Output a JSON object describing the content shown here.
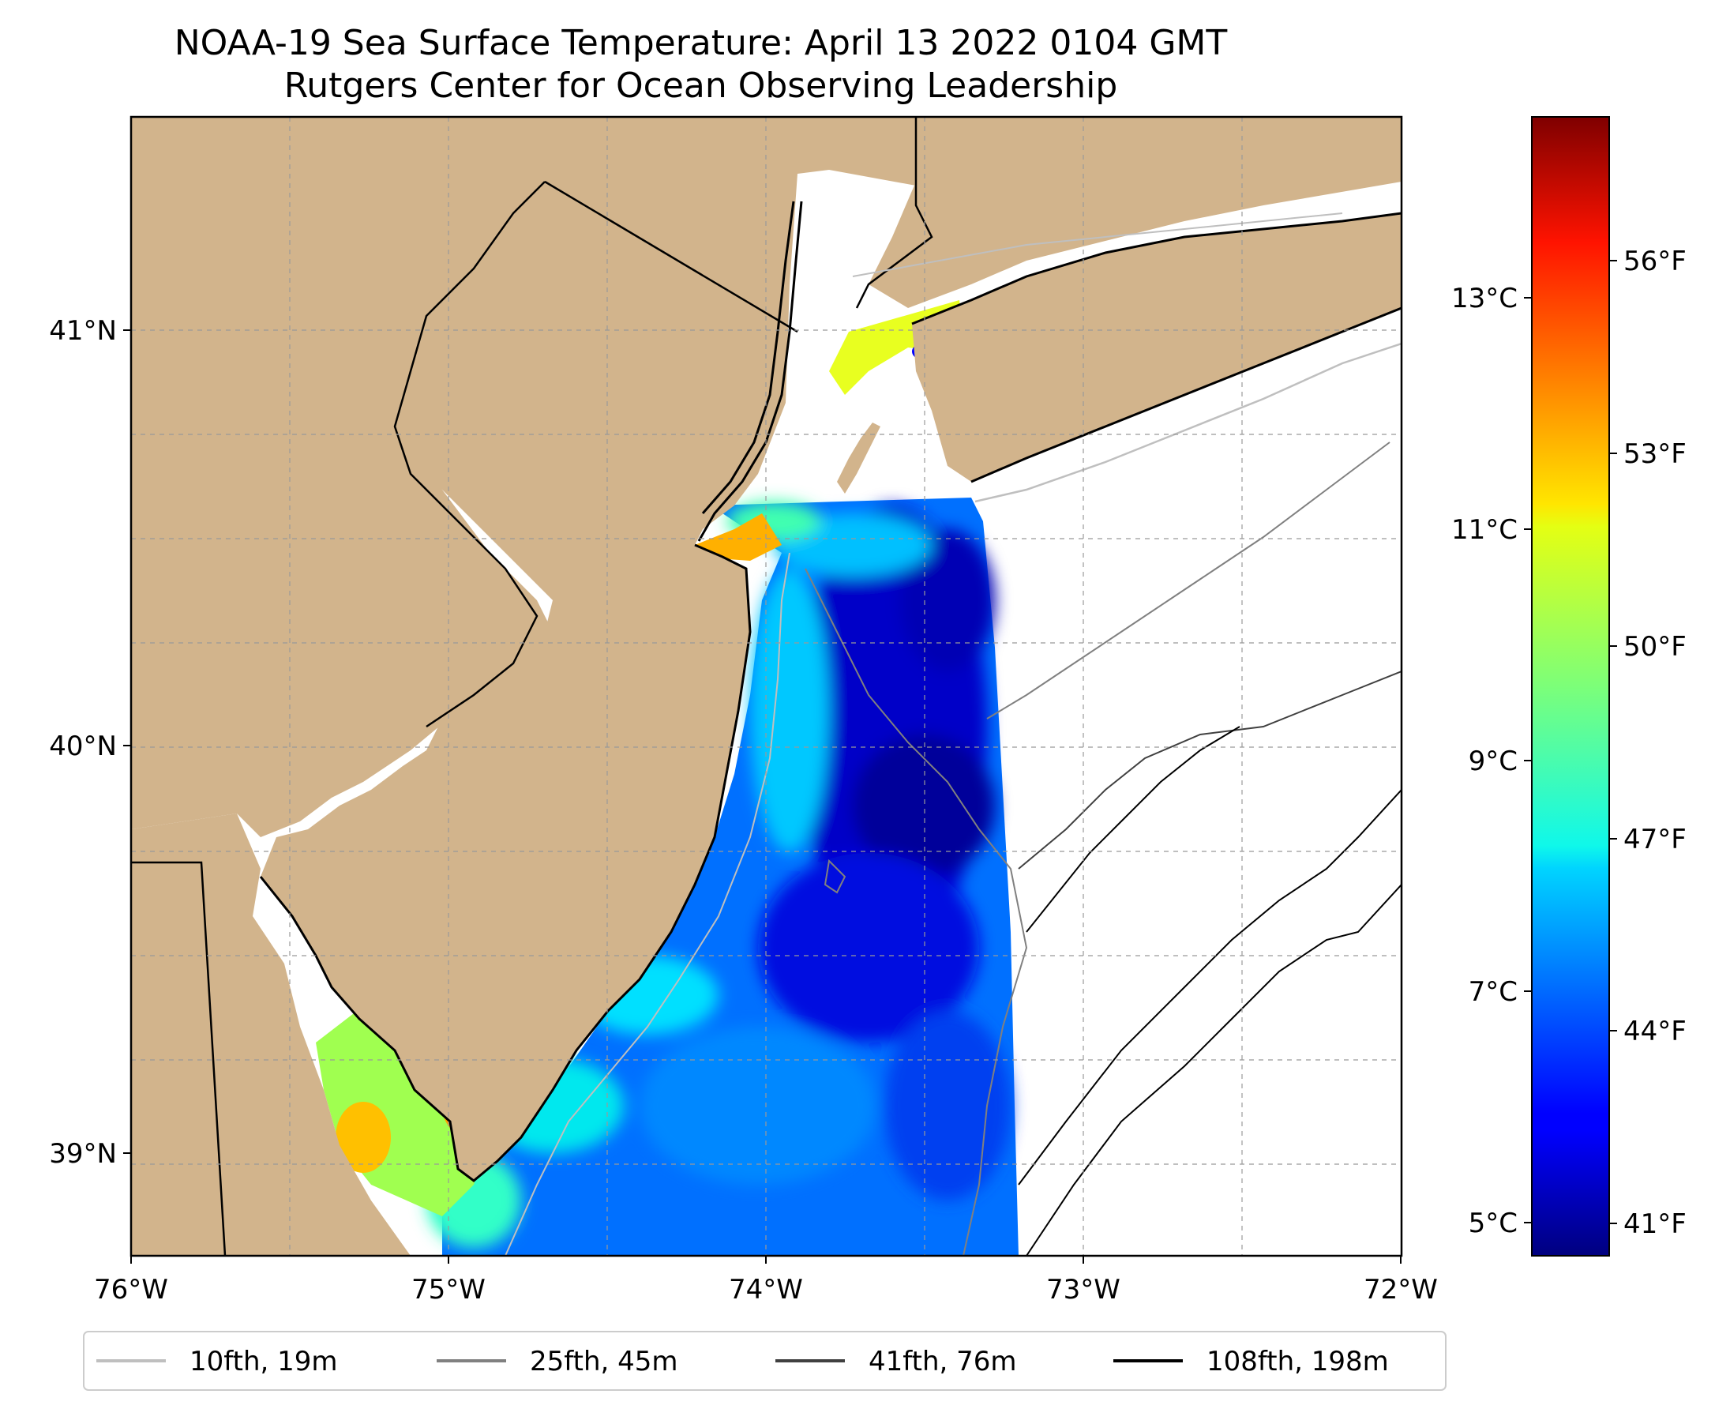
{
  "title": {
    "line1": "NOAA-19 Sea Surface Temperature: April 13 2022 0104 GMT",
    "line2": "Rutgers Center for Ocean Observing Leadership"
  },
  "map": {
    "lon_range": [
      -76,
      -72
    ],
    "lat_range": [
      38.7,
      41.5
    ],
    "lon_ticks": [
      "76°W",
      "75°W",
      "74°W",
      "73°W",
      "72°W"
    ],
    "lat_ticks": [
      "41°N",
      "40°N",
      "39°N"
    ],
    "land_color": "#d2b48c",
    "no_data_color": "#ffffff"
  },
  "colorbar": {
    "colormap": "jet",
    "celsius_ticks": [
      "13°C",
      "11°C",
      "9°C",
      "7°C",
      "5°C"
    ],
    "fahrenheit_ticks": [
      "56°F",
      "53°F",
      "50°F",
      "47°F",
      "44°F",
      "41°F"
    ]
  },
  "legend": {
    "items": [
      {
        "label": "10fth, 19m",
        "color": "#bfbfbf"
      },
      {
        "label": "25fth, 45m",
        "color": "#808080"
      },
      {
        "label": "41fth, 76m",
        "color": "#404040"
      },
      {
        "label": "108fth, 198m",
        "color": "#000000"
      }
    ]
  }
}
